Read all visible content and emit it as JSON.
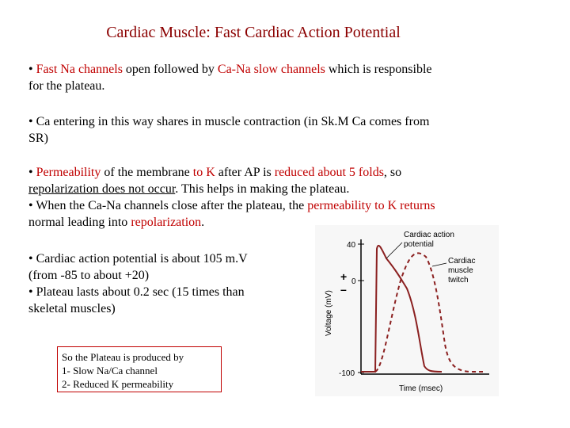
{
  "title": "Cardiac Muscle: Fast Cardiac Action Potential",
  "p1": {
    "a": "• ",
    "b": "Fast Na channels",
    "c": " open followed by ",
    "d": "Ca-Na slow channels",
    "e": " which is responsible",
    "f": "for the plateau."
  },
  "p2": {
    "line1": "• Ca entering in this way shares in muscle contraction (in Sk.M Ca comes from",
    "line2": "SR)"
  },
  "p3": {
    "a": "• ",
    "b": "Permeability",
    "c": " of the membrane ",
    "d": "to K",
    "e": " after AP is ",
    "f": "reduced about 5 folds",
    "g": ", so",
    "h": "repolarization does not occur",
    "i": ". This helps in making the plateau.",
    "j": "• When the Ca-Na channels close after the plateau, the ",
    "k": "permeability to K returns",
    "l": "normal leading into ",
    "m": "repolarization",
    "n": "."
  },
  "p4": {
    "line1": "• Cardiac action potential is about 105 m.V",
    "line2": "(from -85 to about +20)",
    "line3": "• Plateau lasts about 0.2 sec (15 times than",
    "line4": "skeletal muscles)"
  },
  "box": {
    "line1": "So the Plateau is produced by",
    "line2": "1- Slow Na/Ca channel",
    "line3": "2- Reduced K permeability"
  },
  "figure": {
    "tick_top": "40",
    "tick_zero": "0",
    "tick_bottom": "-100",
    "plus": "+",
    "minus": "–",
    "ylabel": "Voltage (mV)",
    "xlabel": "Time (msec)",
    "label_ap_1": "Cardiac action",
    "label_ap_2": "potential",
    "label_tw_1": "Cardiac",
    "label_tw_2": "muscle",
    "label_tw_3": "twitch",
    "line_color": "#8b2020"
  }
}
